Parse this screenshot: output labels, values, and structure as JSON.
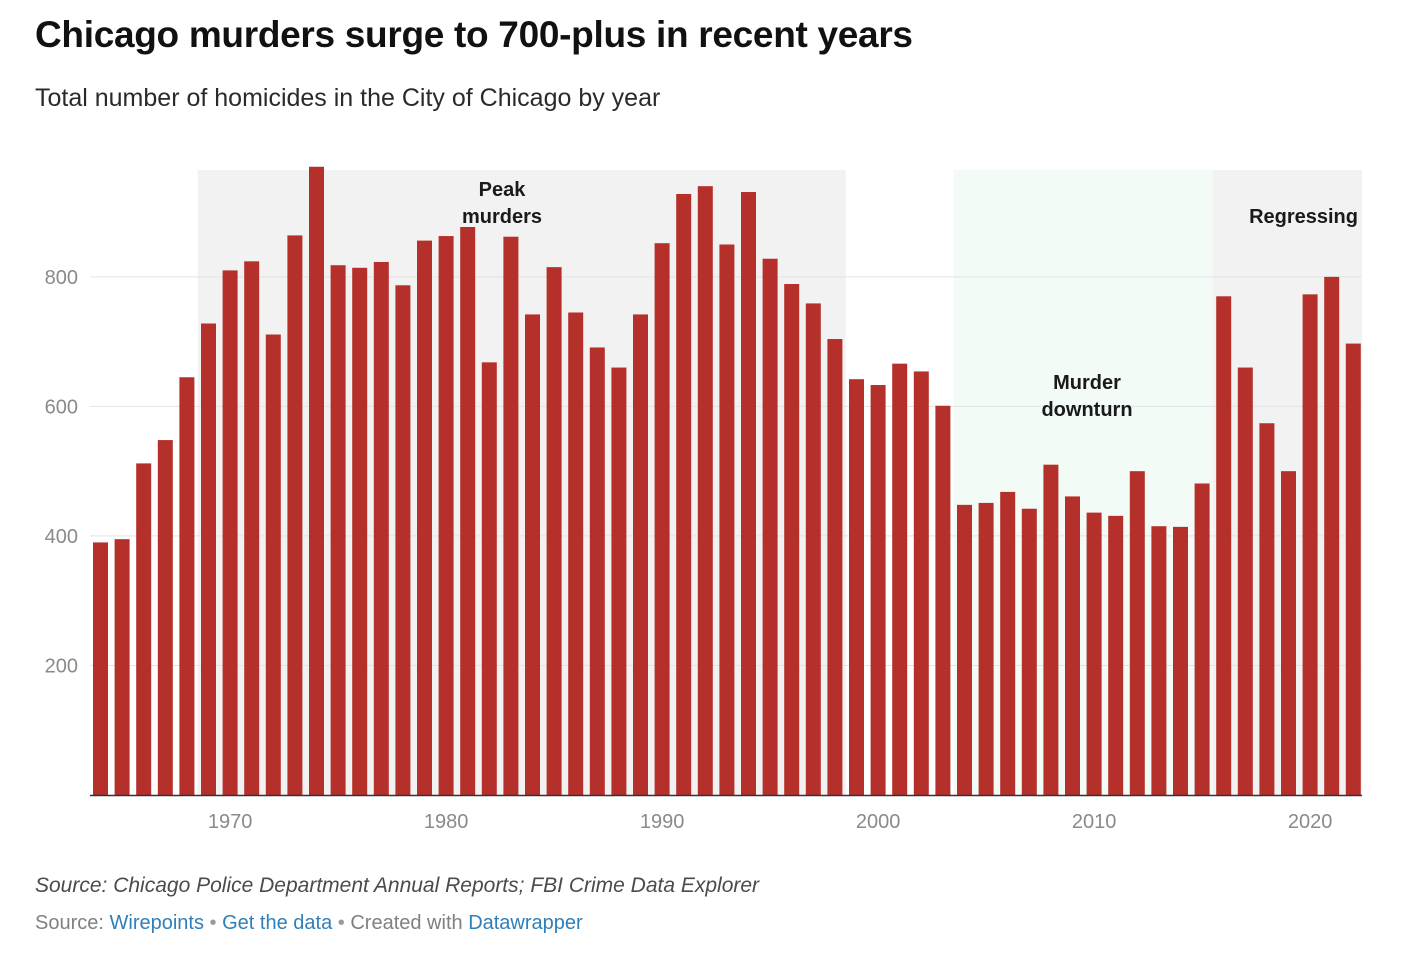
{
  "header": {
    "title": "Chicago murders surge to 700-plus in recent years",
    "subtitle": "Total number of homicides in the City of Chicago by year"
  },
  "footer": {
    "source_note": "Source: Chicago Police Department Annual Reports; FBI Crime Data Explorer",
    "source_label": "Source:",
    "source_link": "Wirepoints",
    "separator": "•",
    "data_link": "Get the data",
    "created_with_label": "Created with",
    "created_with_link": "Datawrapper"
  },
  "colors": {
    "bar": "#b5302a",
    "band_gray": "#f2f2f2",
    "band_mint": "#f3fbf7",
    "gridline": "#e3e3e3",
    "axis": "#333333",
    "tick_label": "#8a8a8a",
    "link": "#2f7fb9"
  },
  "chart_data": {
    "type": "bar",
    "title": "Chicago murders surge to 700-plus in recent years",
    "subtitle": "Total number of homicides in the City of Chicago by year",
    "xlabel": "",
    "ylabel": "",
    "ylim": [
      0,
      965
    ],
    "yticks": [
      200,
      400,
      600,
      800
    ],
    "xticks": [
      1970,
      1980,
      1990,
      2000,
      2010,
      2020
    ],
    "grid": true,
    "series": [
      {
        "name": "Homicides",
        "years": [
          1964,
          1965,
          1966,
          1967,
          1968,
          1969,
          1970,
          1971,
          1972,
          1973,
          1974,
          1975,
          1976,
          1977,
          1978,
          1979,
          1980,
          1981,
          1982,
          1983,
          1984,
          1985,
          1986,
          1987,
          1988,
          1989,
          1990,
          1991,
          1992,
          1993,
          1994,
          1995,
          1996,
          1997,
          1998,
          1999,
          2000,
          2001,
          2002,
          2003,
          2004,
          2005,
          2006,
          2007,
          2008,
          2009,
          2010,
          2011,
          2012,
          2013,
          2014,
          2015,
          2016,
          2017,
          2018,
          2019,
          2020,
          2021,
          2022
        ],
        "values": [
          390,
          395,
          512,
          548,
          645,
          728,
          810,
          824,
          711,
          864,
          970,
          818,
          814,
          823,
          787,
          856,
          863,
          877,
          668,
          862,
          742,
          815,
          745,
          691,
          660,
          742,
          852,
          928,
          940,
          850,
          931,
          828,
          789,
          759,
          704,
          642,
          633,
          666,
          654,
          601,
          448,
          451,
          468,
          442,
          510,
          461,
          436,
          431,
          500,
          415,
          414,
          481,
          770,
          660,
          574,
          500,
          773,
          800,
          697
        ]
      }
    ],
    "annotations": [
      {
        "label": "Peak murders",
        "lines": [
          "Peak",
          "murders"
        ],
        "start_year": 1969,
        "end_year": 1998,
        "shade": "gray"
      },
      {
        "label": "Murder downturn",
        "lines": [
          "Murder",
          "downturn"
        ],
        "start_year": 2004,
        "end_year": 2015,
        "shade": "mint"
      },
      {
        "label": "Regressing",
        "lines": [
          "Regressing"
        ],
        "start_year": 2016,
        "end_year": 2022,
        "shade": "gray"
      }
    ]
  }
}
